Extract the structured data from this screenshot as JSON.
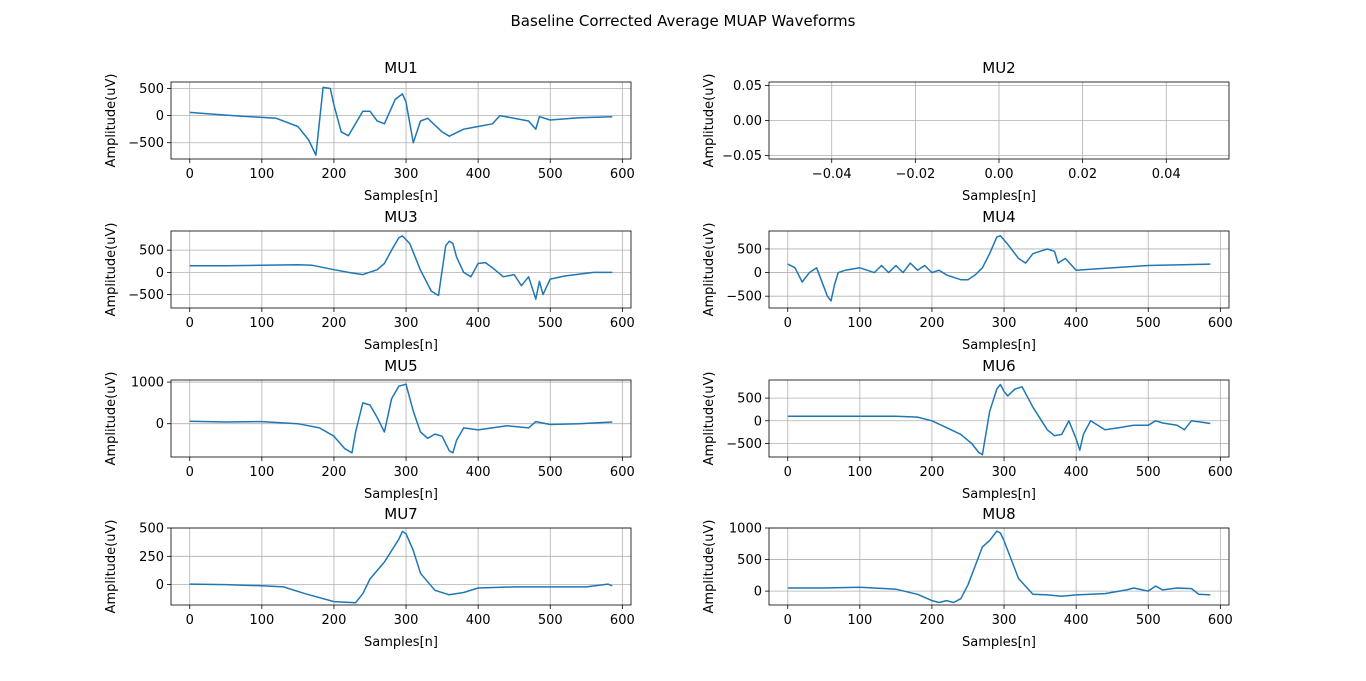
{
  "figure": {
    "title": "Baseline Corrected Average MUAP Waveforms"
  },
  "chart_data": [
    {
      "type": "line",
      "title": "MU1",
      "xlabel": "Samples[n]",
      "ylabel": "Amplitude(uV)",
      "xlim": [
        -26,
        612
      ],
      "ylim": [
        -800,
        620
      ],
      "grid": true,
      "xticks": [
        0,
        100,
        200,
        300,
        400,
        500,
        600
      ],
      "yticks": [
        -500,
        0,
        500
      ],
      "series": [
        {
          "color": "#1f77b4",
          "x": [
            0,
            20,
            60,
            120,
            150,
            165,
            175,
            185,
            195,
            200,
            210,
            220,
            240,
            250,
            260,
            270,
            285,
            295,
            300,
            310,
            320,
            330,
            350,
            360,
            380,
            400,
            420,
            430,
            470,
            480,
            485,
            500,
            540,
            586
          ],
          "y": [
            60,
            40,
            0,
            -50,
            -200,
            -450,
            -730,
            520,
            500,
            200,
            -300,
            -370,
            80,
            80,
            -100,
            -150,
            300,
            400,
            250,
            -500,
            -100,
            -50,
            -300,
            -380,
            -250,
            -200,
            -150,
            0,
            -100,
            -250,
            -20,
            -80,
            -40,
            -20
          ]
        }
      ]
    },
    {
      "type": "line",
      "title": "MU2",
      "xlabel": "Samples[n]",
      "ylabel": "Amplitude(uV)",
      "xlim": [
        -0.055,
        0.055
      ],
      "ylim": [
        -0.055,
        0.055
      ],
      "grid": true,
      "xticks": [
        -0.04,
        -0.02,
        0.0,
        0.02,
        0.04
      ],
      "yticks": [
        -0.05,
        0.0,
        0.05
      ],
      "series": []
    },
    {
      "type": "line",
      "title": "MU3",
      "xlabel": "Samples[n]",
      "ylabel": "Amplitude(uV)",
      "xlim": [
        -26,
        612
      ],
      "ylim": [
        -800,
        930
      ],
      "grid": true,
      "xticks": [
        0,
        100,
        200,
        300,
        400,
        500,
        600
      ],
      "yticks": [
        -500,
        0,
        500
      ],
      "series": [
        {
          "color": "#1f77b4",
          "x": [
            0,
            50,
            100,
            150,
            170,
            200,
            220,
            240,
            260,
            270,
            280,
            290,
            295,
            305,
            320,
            335,
            345,
            355,
            360,
            365,
            370,
            380,
            390,
            400,
            410,
            420,
            435,
            450,
            460,
            470,
            480,
            485,
            490,
            500,
            520,
            560,
            586
          ],
          "y": [
            150,
            150,
            160,
            170,
            160,
            60,
            0,
            -50,
            60,
            200,
            500,
            780,
            820,
            650,
            50,
            -420,
            -520,
            600,
            700,
            650,
            350,
            0,
            -100,
            200,
            220,
            100,
            -100,
            -50,
            -300,
            -100,
            -600,
            -200,
            -500,
            -150,
            -80,
            0,
            0
          ]
        }
      ]
    },
    {
      "type": "line",
      "title": "MU4",
      "xlabel": "Samples[n]",
      "ylabel": "Amplitude(uV)",
      "xlim": [
        -26,
        612
      ],
      "ylim": [
        -750,
        880
      ],
      "grid": true,
      "xticks": [
        0,
        100,
        200,
        300,
        400,
        500,
        600
      ],
      "yticks": [
        -500,
        0,
        500
      ],
      "series": [
        {
          "color": "#1f77b4",
          "x": [
            0,
            10,
            20,
            30,
            40,
            50,
            55,
            60,
            65,
            70,
            80,
            100,
            120,
            130,
            140,
            150,
            160,
            170,
            180,
            190,
            200,
            210,
            220,
            230,
            240,
            250,
            260,
            270,
            280,
            290,
            295,
            305,
            320,
            330,
            340,
            350,
            360,
            370,
            375,
            385,
            400,
            420,
            500,
            586
          ],
          "y": [
            180,
            100,
            -200,
            0,
            100,
            -300,
            -500,
            -600,
            -250,
            0,
            50,
            100,
            0,
            150,
            0,
            150,
            0,
            200,
            50,
            150,
            0,
            50,
            -50,
            -100,
            -150,
            -150,
            -50,
            100,
            400,
            750,
            780,
            600,
            300,
            200,
            400,
            450,
            500,
            450,
            200,
            300,
            50,
            70,
            150,
            180
          ]
        }
      ]
    },
    {
      "type": "line",
      "title": "MU5",
      "xlabel": "Samples[n]",
      "ylabel": "Amplitude(uV)",
      "xlim": [
        -26,
        612
      ],
      "ylim": [
        -800,
        1050
      ],
      "grid": true,
      "xticks": [
        0,
        100,
        200,
        300,
        400,
        500,
        600
      ],
      "yticks": [
        0,
        1000
      ],
      "series": [
        {
          "color": "#1f77b4",
          "x": [
            0,
            50,
            100,
            150,
            180,
            200,
            215,
            225,
            230,
            240,
            250,
            260,
            270,
            280,
            290,
            300,
            310,
            320,
            330,
            340,
            350,
            360,
            365,
            370,
            380,
            400,
            440,
            470,
            480,
            500,
            540,
            586
          ],
          "y": [
            60,
            40,
            50,
            0,
            -100,
            -300,
            -600,
            -700,
            -200,
            500,
            450,
            150,
            -200,
            600,
            900,
            950,
            300,
            -200,
            -350,
            -250,
            -300,
            -650,
            -700,
            -400,
            -100,
            -150,
            -50,
            -100,
            50,
            -20,
            0,
            40
          ]
        }
      ]
    },
    {
      "type": "line",
      "title": "MU6",
      "xlabel": "Samples[n]",
      "ylabel": "Amplitude(uV)",
      "xlim": [
        -26,
        612
      ],
      "ylim": [
        -800,
        900
      ],
      "grid": true,
      "xticks": [
        0,
        100,
        200,
        300,
        400,
        500,
        600
      ],
      "yticks": [
        -500,
        0,
        500
      ],
      "series": [
        {
          "color": "#1f77b4",
          "x": [
            0,
            100,
            150,
            180,
            200,
            220,
            240,
            255,
            265,
            270,
            280,
            290,
            295,
            300,
            305,
            315,
            325,
            340,
            360,
            370,
            380,
            390,
            400,
            405,
            410,
            420,
            440,
            460,
            480,
            500,
            510,
            520,
            540,
            550,
            560,
            586
          ],
          "y": [
            100,
            100,
            100,
            80,
            0,
            -150,
            -300,
            -500,
            -700,
            -750,
            200,
            700,
            800,
            650,
            550,
            700,
            750,
            300,
            -200,
            -330,
            -300,
            0,
            -400,
            -650,
            -300,
            0,
            -200,
            -150,
            -100,
            -100,
            0,
            -50,
            -100,
            -200,
            0,
            -60
          ]
        }
      ]
    },
    {
      "type": "line",
      "title": "MU7",
      "xlabel": "Samples[n]",
      "ylabel": "Amplitude(uV)",
      "xlim": [
        -26,
        612
      ],
      "ylim": [
        -180,
        500
      ],
      "grid": true,
      "xticks": [
        0,
        100,
        200,
        300,
        400,
        500,
        600
      ],
      "yticks": [
        0,
        250,
        500
      ],
      "series": [
        {
          "color": "#1f77b4",
          "x": [
            0,
            50,
            100,
            130,
            160,
            200,
            230,
            240,
            250,
            270,
            280,
            290,
            295,
            300,
            310,
            320,
            340,
            360,
            380,
            400,
            450,
            500,
            550,
            580,
            586
          ],
          "y": [
            5,
            0,
            -10,
            -20,
            -80,
            -150,
            -160,
            -80,
            50,
            200,
            300,
            400,
            470,
            450,
            300,
            100,
            -50,
            -90,
            -70,
            -30,
            -20,
            -20,
            -20,
            5,
            -10
          ]
        }
      ]
    },
    {
      "type": "line",
      "title": "MU8",
      "xlabel": "Samples[n]",
      "ylabel": "Amplitude(uV)",
      "xlim": [
        -26,
        612
      ],
      "ylim": [
        -220,
        1000
      ],
      "grid": true,
      "xticks": [
        0,
        100,
        200,
        300,
        400,
        500,
        600
      ],
      "yticks": [
        0,
        500,
        1000
      ],
      "series": [
        {
          "color": "#1f77b4",
          "x": [
            0,
            50,
            100,
            150,
            180,
            200,
            210,
            220,
            230,
            240,
            250,
            260,
            270,
            280,
            290,
            295,
            300,
            310,
            320,
            340,
            360,
            380,
            400,
            440,
            470,
            480,
            500,
            510,
            520,
            540,
            560,
            570,
            586
          ],
          "y": [
            50,
            50,
            60,
            30,
            -50,
            -150,
            -180,
            -150,
            -180,
            -120,
            100,
            400,
            700,
            800,
            950,
            920,
            800,
            500,
            200,
            -50,
            -60,
            -80,
            -60,
            -40,
            20,
            50,
            0,
            80,
            20,
            50,
            40,
            -50,
            -60
          ]
        }
      ]
    }
  ]
}
